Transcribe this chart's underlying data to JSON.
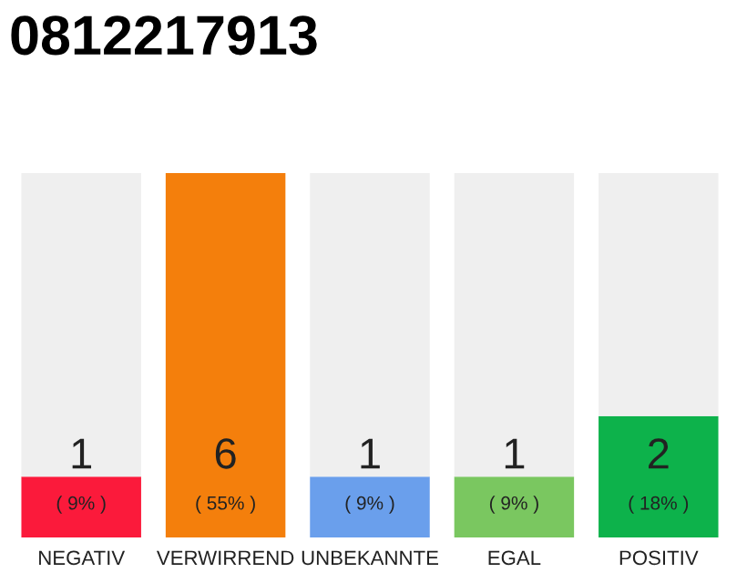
{
  "chart_data": {
    "type": "bar",
    "title": "0812217913",
    "categories": [
      "NEGATIV",
      "VERWIRREND",
      "UNBEKANNTE",
      "EGAL",
      "POSITIV"
    ],
    "stacked": true,
    "ylim": [
      0,
      6
    ],
    "tick_labels": "x",
    "grid": false,
    "legend": false,
    "series": [
      {
        "colors": [
          "#fb1a3b",
          "#f47f0c",
          "#6a9fec",
          "#7ac760",
          "#0db24b"
        ],
        "values": [
          1,
          6,
          1,
          1,
          2
        ],
        "value_labels": [
          "1",
          "6",
          "1",
          "1",
          "2"
        ]
      },
      {
        "color": "#efefef",
        "values": [
          5,
          0,
          5,
          5,
          4
        ]
      }
    ],
    "annotations": [
      "( 9% )",
      "( 55% )",
      "( 9% )",
      "( 9% )",
      "( 18% )"
    ]
  }
}
